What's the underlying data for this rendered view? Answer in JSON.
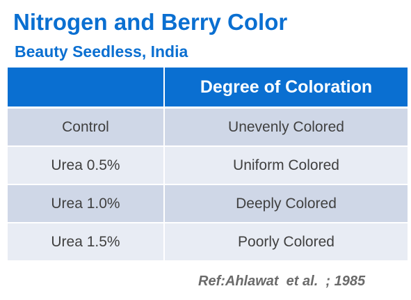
{
  "title": "Nitrogen and Berry Color",
  "subtitle": "Beauty Seedless, India",
  "table": {
    "headers": [
      "",
      "Degree of Coloration"
    ],
    "rows": [
      {
        "treatment": "Control",
        "coloration": "Unevenly Colored"
      },
      {
        "treatment": "Urea 0.5%",
        "coloration": "Uniform Colored"
      },
      {
        "treatment": "Urea 1.0%",
        "coloration": "Deeply Colored"
      },
      {
        "treatment": "Urea 1.5%",
        "coloration": "Poorly Colored"
      }
    ]
  },
  "reference": "Ref:Ahlawat  et al.  ; 1985",
  "colors": {
    "accent": "#0a6fd1",
    "row_dark": "#cfd7e7",
    "row_light": "#e8ecf4",
    "reference_text": "#6a6a6a"
  }
}
